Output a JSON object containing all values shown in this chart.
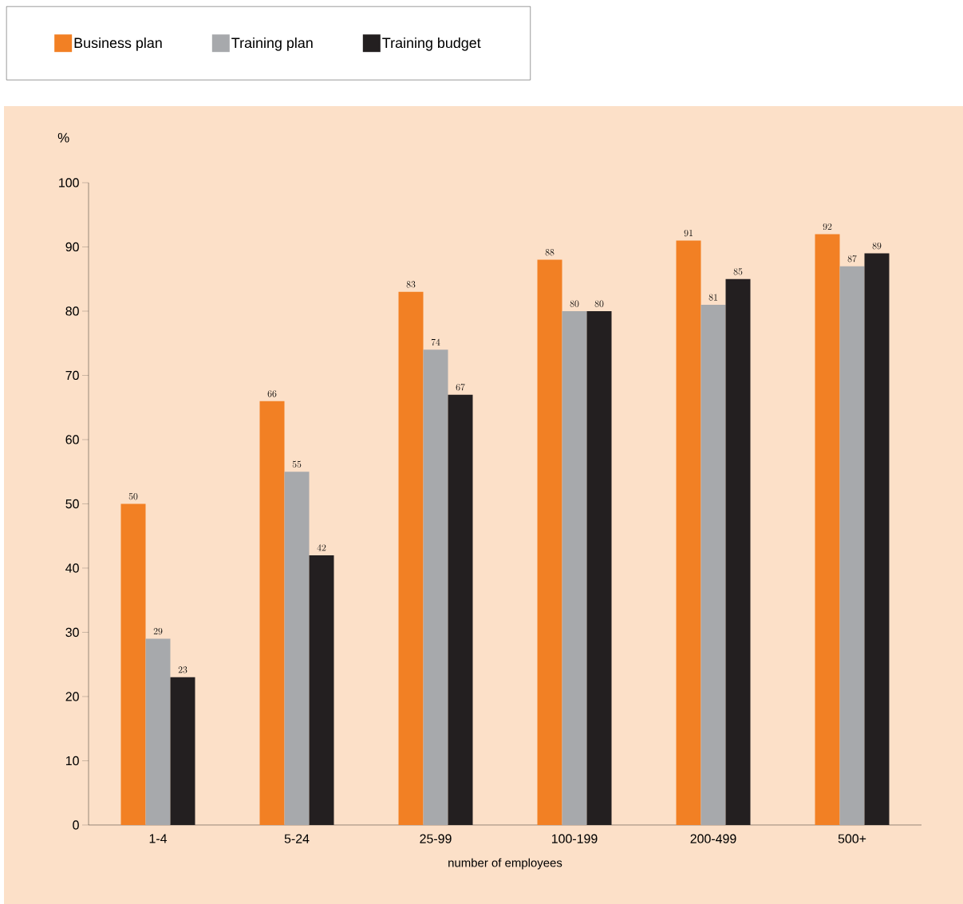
{
  "chart_data": {
    "type": "bar",
    "ylabel": "%",
    "xlabel": "number of employees",
    "categories": [
      "1-4",
      "5-24",
      "25-99",
      "100-199",
      "200-499",
      "500+"
    ],
    "series": [
      {
        "name": "Business plan",
        "color": "#f28024",
        "values": [
          50,
          66,
          83,
          88,
          91,
          92
        ]
      },
      {
        "name": "Training plan",
        "color": "#a7a9ac",
        "values": [
          29,
          55,
          74,
          80,
          81,
          87
        ]
      },
      {
        "name": "Training budget",
        "color": "#231f20",
        "values": [
          23,
          42,
          67,
          80,
          85,
          89
        ]
      }
    ],
    "ylim": [
      0,
      100
    ],
    "yticks": [
      0,
      10,
      20,
      30,
      40,
      50,
      60,
      70,
      80,
      90,
      100
    ],
    "data_labels": true,
    "legend": "top left"
  }
}
